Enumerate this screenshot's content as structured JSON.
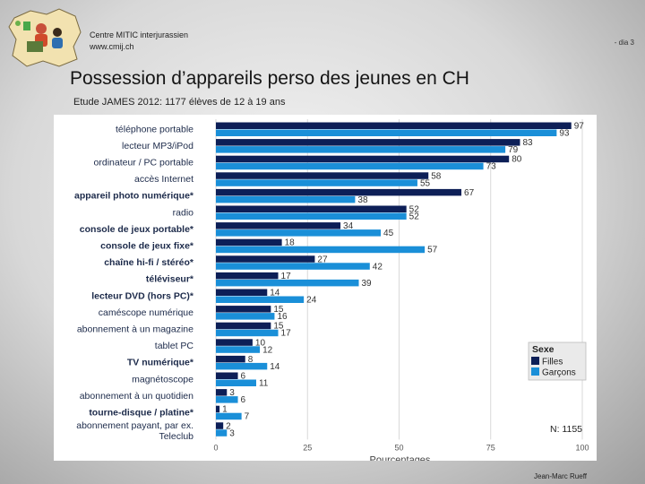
{
  "header": {
    "org_name": "Centre MITIC interjurassien",
    "org_url": "www.cmij.ch",
    "slide_label": "- dia 3"
  },
  "slide": {
    "title": "Possession d’appareils perso des jeunes en CH",
    "subtitle": "Etude JAMES 2012: 1177 élèves de 12 à 19 ans"
  },
  "footer": {
    "author": "Jean-Marc Rueff"
  },
  "colors": {
    "girls": "#0d1f57",
    "boys": "#1a8fd8"
  },
  "chart_data": {
    "type": "bar",
    "orientation": "horizontal",
    "categories": [
      {
        "label": "téléphone portable",
        "bold": false
      },
      {
        "label": "lecteur MP3/iPod",
        "bold": false
      },
      {
        "label": "ordinateur / PC portable",
        "bold": false
      },
      {
        "label": "accès Internet",
        "bold": false
      },
      {
        "label": "appareil photo numérique*",
        "bold": true
      },
      {
        "label": "radio",
        "bold": false
      },
      {
        "label": "console de jeux portable*",
        "bold": true
      },
      {
        "label": "console de jeux fixe*",
        "bold": true
      },
      {
        "label": "chaîne hi-fi / stéréo*",
        "bold": true
      },
      {
        "label": "téléviseur*",
        "bold": true
      },
      {
        "label": "lecteur DVD (hors PC)*",
        "bold": true
      },
      {
        "label": "caméscope numérique",
        "bold": false
      },
      {
        "label": "abonnement à un magazine",
        "bold": false
      },
      {
        "label": "tablet PC",
        "bold": false
      },
      {
        "label": "TV numérique*",
        "bold": true
      },
      {
        "label": "magnétoscope",
        "bold": false
      },
      {
        "label": "abonnement à un quotidien",
        "bold": false
      },
      {
        "label": "tourne-disque / platine*",
        "bold": true
      },
      {
        "label": "abonnement payant, par ex.",
        "label2": "Teleclub",
        "bold": false
      }
    ],
    "series": [
      {
        "name": "Filles",
        "values": [
          97,
          83,
          80,
          58,
          67,
          52,
          34,
          18,
          27,
          17,
          14,
          15,
          15,
          10,
          8,
          6,
          3,
          1,
          2
        ]
      },
      {
        "name": "Garçons",
        "values": [
          93,
          79,
          73,
          55,
          38,
          52,
          45,
          57,
          42,
          39,
          24,
          16,
          17,
          12,
          14,
          11,
          6,
          7,
          3
        ]
      }
    ],
    "xlim": [
      0,
      100
    ],
    "xticks": [
      0,
      25,
      50,
      75,
      100
    ],
    "xlabel": "Pourcentages",
    "legend_title": "Sexe",
    "legend_position": "right",
    "annotation": "N: 1155"
  }
}
